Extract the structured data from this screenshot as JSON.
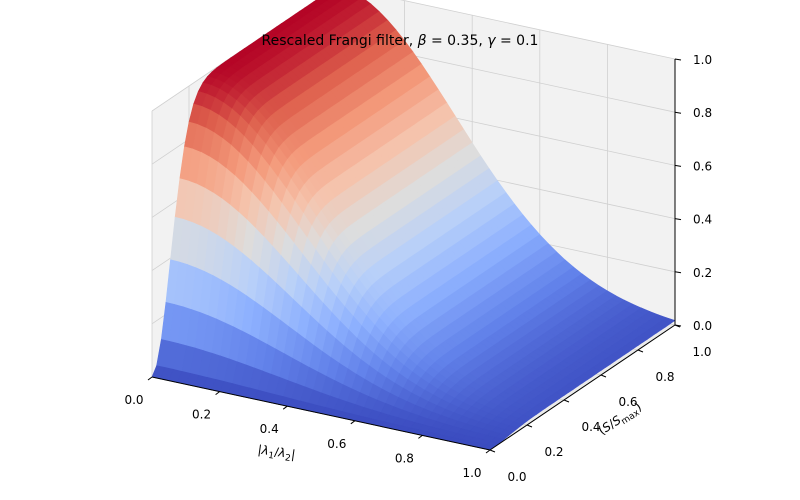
{
  "chart_data": {
    "type": "surface",
    "title": "Rescaled Frangi filter, β = 0.35, γ = 0.1",
    "title_parts": {
      "prefix": "Rescaled Frangi filter, ",
      "beta_sym": "β",
      "beta_val": " = 0.35, ",
      "gamma_sym": "γ",
      "gamma_val": " = 0.1"
    },
    "xlabel": "|λ1/λ2|",
    "xlabel_parts": {
      "bar_l": "|",
      "l1": "λ",
      "s1": "1",
      "slash": "/",
      "l2": "λ",
      "s2": "2",
      "bar_r": "|"
    },
    "ylabel": "(S/Smax)",
    "ylabel_parts": {
      "open": "(",
      "s": "S",
      "slash": "/",
      "s2": "S",
      "sub": "max",
      "close": ")"
    },
    "x_ticks": [
      "0.0",
      "0.2",
      "0.4",
      "0.6",
      "0.8",
      "1.0"
    ],
    "y_ticks": [
      "0.0",
      "0.2",
      "0.4",
      "0.6",
      "0.8",
      "1.0"
    ],
    "z_ticks": [
      "0.0",
      "0.2",
      "0.4",
      "0.6",
      "0.8",
      "1.0"
    ],
    "xlim": [
      0,
      1
    ],
    "ylim": [
      0,
      1
    ],
    "zlim": [
      0,
      1
    ],
    "parameters": {
      "beta": 0.35,
      "gamma": 0.1
    },
    "colormap": "coolwarm",
    "grid": true
  }
}
